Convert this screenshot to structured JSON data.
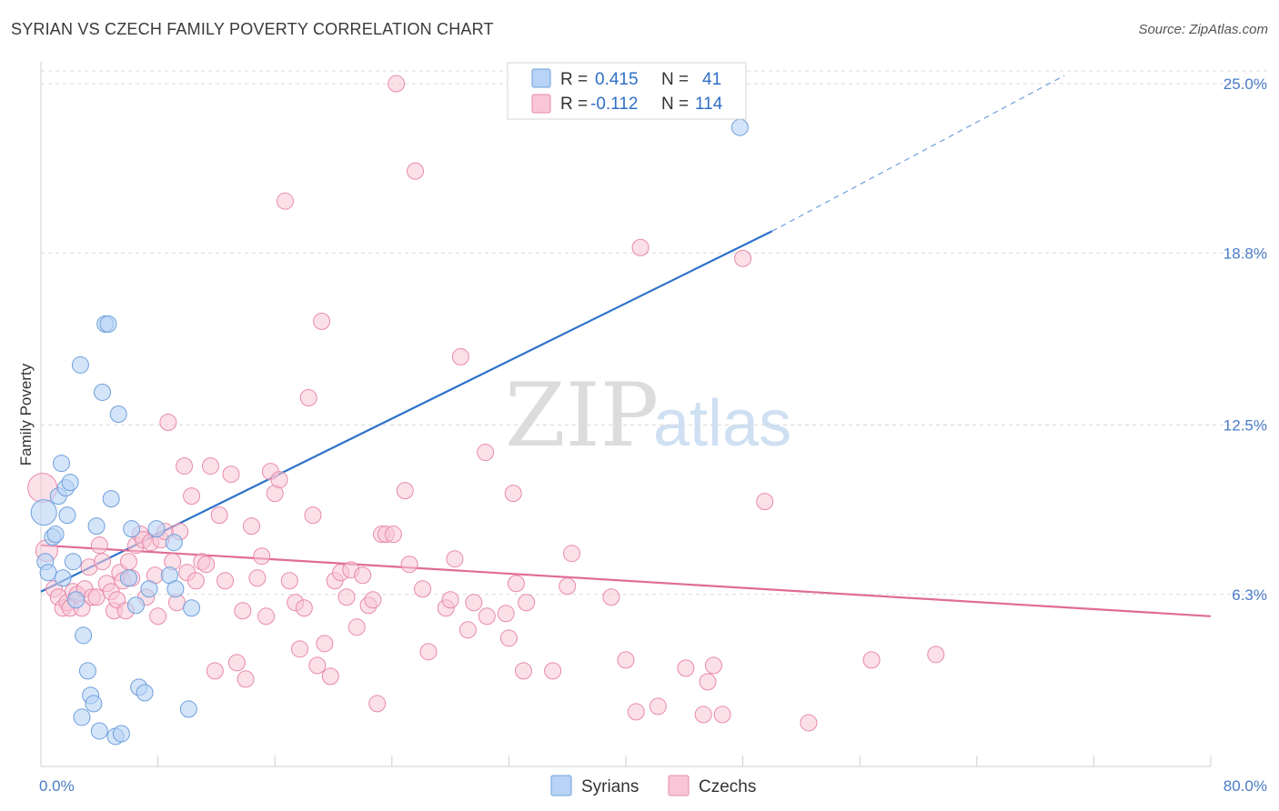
{
  "header": {
    "title": "SYRIAN VS CZECH FAMILY POVERTY CORRELATION CHART",
    "source": "Source: ZipAtlas.com"
  },
  "watermark": {
    "zip": "ZIP",
    "atlas": "atlas"
  },
  "legend": {
    "r_label": "R =",
    "n_label": "N =",
    "syrians": {
      "r": "0.415",
      "n": "41"
    },
    "czechs": {
      "r": "-0.112",
      "n": "114"
    }
  },
  "bottom_legend": {
    "syrians": "Syrians",
    "czechs": "Czechs"
  },
  "colors": {
    "syrian_fill": "#b8d3f5",
    "syrian_stroke": "#6f9fdc",
    "syrian_line": "#2f72c9",
    "czech_fill": "#f8c6d6",
    "czech_stroke": "#e98aab",
    "czech_line": "#e06b97",
    "grid": "#d9d9d9",
    "tick_text": "#4a7cc7"
  },
  "chart_data": {
    "type": "scatter",
    "title": "SYRIAN VS CZECH FAMILY POVERTY CORRELATION CHART",
    "xlabel": "",
    "ylabel": "Family Poverty",
    "xlim": [
      0,
      80
    ],
    "ylim": [
      0,
      25.8
    ],
    "x_ticks": [
      "0.0%",
      "80.0%"
    ],
    "y_ticks": [
      {
        "value": 6.3,
        "label": "6.3%"
      },
      {
        "value": 12.5,
        "label": "12.5%"
      },
      {
        "value": 18.8,
        "label": "18.8%"
      },
      {
        "value": 25.0,
        "label": "25.0%"
      }
    ],
    "grid": true,
    "legend_position": "top-center",
    "series": [
      {
        "name": "Syrians",
        "r": 0.415,
        "n": 41,
        "trend": {
          "x0": 0,
          "y0": 6.4,
          "x1": 50,
          "y1": 19.6,
          "dash_to_x": 70,
          "dash_to_y": 25.3
        },
        "points": [
          [
            0.2,
            9.3,
            14
          ],
          [
            0.3,
            7.5,
            9
          ],
          [
            0.5,
            7.1,
            9
          ],
          [
            0.8,
            8.4,
            9
          ],
          [
            1.0,
            8.5,
            9
          ],
          [
            1.2,
            9.9,
            9
          ],
          [
            1.4,
            11.1,
            9
          ],
          [
            1.5,
            6.9,
            9
          ],
          [
            1.7,
            10.2,
            9
          ],
          [
            1.8,
            9.2,
            9
          ],
          [
            2.0,
            10.4,
            9
          ],
          [
            2.2,
            7.5,
            9
          ],
          [
            2.4,
            6.1,
            9
          ],
          [
            2.7,
            14.7,
            9
          ],
          [
            2.8,
            1.8,
            9
          ],
          [
            2.9,
            4.8,
            9
          ],
          [
            3.2,
            3.5,
            9
          ],
          [
            3.4,
            2.6,
            9
          ],
          [
            3.6,
            2.3,
            9
          ],
          [
            3.8,
            8.8,
            9
          ],
          [
            4.0,
            1.3,
            9
          ],
          [
            4.2,
            13.7,
            9
          ],
          [
            4.4,
            16.2,
            9
          ],
          [
            4.6,
            16.2,
            9
          ],
          [
            4.8,
            9.8,
            9
          ],
          [
            5.1,
            1.1,
            9
          ],
          [
            5.3,
            12.9,
            9
          ],
          [
            5.5,
            1.2,
            9
          ],
          [
            6.0,
            6.9,
            9
          ],
          [
            6.2,
            8.7,
            9
          ],
          [
            6.5,
            5.9,
            9
          ],
          [
            6.7,
            2.9,
            9
          ],
          [
            7.1,
            2.7,
            9
          ],
          [
            7.4,
            6.5,
            9
          ],
          [
            7.9,
            8.7,
            9
          ],
          [
            8.8,
            7.0,
            9
          ],
          [
            9.1,
            8.2,
            9
          ],
          [
            9.2,
            6.5,
            9
          ],
          [
            10.1,
            2.1,
            9
          ],
          [
            10.3,
            5.8,
            9
          ],
          [
            47.8,
            23.4,
            9
          ]
        ]
      },
      {
        "name": "Czechs",
        "r": -0.112,
        "n": 114,
        "trend": {
          "x0": 0,
          "y0": 8.1,
          "x1": 80,
          "y1": 5.5
        },
        "points": [
          [
            0.1,
            10.2,
            16
          ],
          [
            0.4,
            7.9,
            12
          ],
          [
            0.9,
            6.5,
            9
          ],
          [
            1.2,
            6.2,
            9
          ],
          [
            1.5,
            5.8,
            9
          ],
          [
            1.8,
            6.0,
            9
          ],
          [
            2.0,
            5.8,
            9
          ],
          [
            2.2,
            6.4,
            9
          ],
          [
            2.5,
            6.3,
            9
          ],
          [
            2.8,
            5.8,
            9
          ],
          [
            3.0,
            6.5,
            9
          ],
          [
            3.3,
            7.3,
            9
          ],
          [
            3.5,
            6.2,
            9
          ],
          [
            3.8,
            6.2,
            9
          ],
          [
            4.0,
            8.1,
            9
          ],
          [
            4.2,
            7.5,
            9
          ],
          [
            4.5,
            6.7,
            9
          ],
          [
            4.8,
            6.4,
            9
          ],
          [
            5.0,
            5.7,
            9
          ],
          [
            5.2,
            6.1,
            9
          ],
          [
            5.4,
            7.1,
            9
          ],
          [
            5.6,
            6.8,
            9
          ],
          [
            5.8,
            5.7,
            9
          ],
          [
            6.0,
            7.5,
            9
          ],
          [
            6.2,
            6.9,
            9
          ],
          [
            6.5,
            8.1,
            9
          ],
          [
            6.8,
            8.5,
            9
          ],
          [
            7.0,
            8.3,
            9
          ],
          [
            7.2,
            6.2,
            9
          ],
          [
            7.5,
            8.2,
            9
          ],
          [
            7.8,
            7.0,
            9
          ],
          [
            8.0,
            5.5,
            9
          ],
          [
            8.2,
            8.3,
            9
          ],
          [
            8.5,
            8.6,
            9
          ],
          [
            8.7,
            12.6,
            9
          ],
          [
            9.0,
            7.5,
            9
          ],
          [
            9.3,
            6.0,
            9
          ],
          [
            9.5,
            8.6,
            9
          ],
          [
            9.8,
            11.0,
            9
          ],
          [
            10.0,
            7.1,
            9
          ],
          [
            10.3,
            9.9,
            9
          ],
          [
            10.6,
            6.8,
            9
          ],
          [
            11.0,
            7.5,
            9
          ],
          [
            11.3,
            7.4,
            9
          ],
          [
            11.6,
            11.0,
            9
          ],
          [
            11.9,
            3.5,
            9
          ],
          [
            12.2,
            9.2,
            9
          ],
          [
            12.6,
            6.8,
            9
          ],
          [
            13.0,
            10.7,
            9
          ],
          [
            13.4,
            3.8,
            9
          ],
          [
            13.8,
            5.7,
            9
          ],
          [
            14.0,
            3.2,
            9
          ],
          [
            14.4,
            8.8,
            9
          ],
          [
            14.8,
            6.9,
            9
          ],
          [
            15.1,
            7.7,
            9
          ],
          [
            15.4,
            5.5,
            9
          ],
          [
            15.7,
            10.8,
            9
          ],
          [
            16.0,
            10.0,
            9
          ],
          [
            16.3,
            10.5,
            9
          ],
          [
            16.7,
            20.7,
            9
          ],
          [
            17.0,
            6.8,
            9
          ],
          [
            17.4,
            6.0,
            9
          ],
          [
            17.7,
            4.3,
            9
          ],
          [
            18.0,
            5.8,
            9
          ],
          [
            18.3,
            13.5,
            9
          ],
          [
            18.6,
            9.2,
            9
          ],
          [
            18.9,
            3.7,
            9
          ],
          [
            19.2,
            16.3,
            9
          ],
          [
            19.4,
            4.5,
            9
          ],
          [
            19.8,
            3.3,
            9
          ],
          [
            20.1,
            6.8,
            9
          ],
          [
            20.5,
            7.1,
            9
          ],
          [
            20.9,
            6.2,
            9
          ],
          [
            21.2,
            7.2,
            9
          ],
          [
            21.6,
            5.1,
            9
          ],
          [
            22.0,
            7.0,
            9
          ],
          [
            22.4,
            5.9,
            9
          ],
          [
            22.7,
            6.1,
            9
          ],
          [
            23.0,
            2.3,
            9
          ],
          [
            23.3,
            8.5,
            9
          ],
          [
            23.6,
            8.5,
            9
          ],
          [
            24.1,
            8.5,
            9
          ],
          [
            24.3,
            25.0,
            9
          ],
          [
            24.9,
            10.1,
            9
          ],
          [
            25.2,
            7.4,
            9
          ],
          [
            25.6,
            21.8,
            9
          ],
          [
            26.1,
            6.5,
            9
          ],
          [
            26.5,
            4.2,
            9
          ],
          [
            27.7,
            5.8,
            9
          ],
          [
            28.0,
            6.1,
            9
          ],
          [
            28.3,
            7.6,
            9
          ],
          [
            28.7,
            15.0,
            9
          ],
          [
            29.2,
            5.0,
            9
          ],
          [
            29.6,
            6.0,
            9
          ],
          [
            30.4,
            11.5,
            9
          ],
          [
            30.5,
            5.5,
            9
          ],
          [
            31.8,
            5.6,
            9
          ],
          [
            32.0,
            4.7,
            9
          ],
          [
            32.3,
            10.0,
            9
          ],
          [
            32.5,
            6.7,
            9
          ],
          [
            33.0,
            3.5,
            9
          ],
          [
            33.2,
            6.0,
            9
          ],
          [
            35.0,
            3.5,
            9
          ],
          [
            36.0,
            6.6,
            9
          ],
          [
            36.3,
            7.8,
            9
          ],
          [
            39.0,
            6.2,
            9
          ],
          [
            40.0,
            3.9,
            9
          ],
          [
            40.7,
            2.0,
            9
          ],
          [
            41.0,
            19.0,
            9
          ],
          [
            42.2,
            2.2,
            9
          ],
          [
            44.1,
            3.6,
            9
          ],
          [
            45.3,
            1.9,
            9
          ],
          [
            45.6,
            3.1,
            9
          ],
          [
            46.0,
            3.7,
            9
          ],
          [
            46.6,
            1.9,
            9
          ],
          [
            48.0,
            18.6,
            9
          ],
          [
            49.5,
            9.7,
            9
          ],
          [
            52.5,
            1.6,
            9
          ],
          [
            56.8,
            3.9,
            9
          ],
          [
            61.2,
            4.1,
            9
          ]
        ]
      }
    ]
  }
}
